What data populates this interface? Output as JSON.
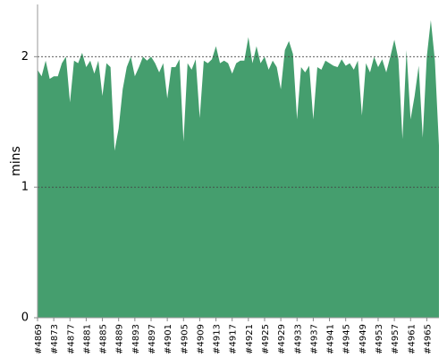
{
  "chart_data": {
    "type": "area",
    "y_label": "mins",
    "color": "#459e6e",
    "grid": true,
    "ylim": [
      0,
      2.4
    ],
    "yticks": [
      0,
      1,
      2
    ],
    "categories": [
      "#4869",
      null,
      null,
      null,
      "#4873",
      null,
      null,
      null,
      "#4877",
      null,
      null,
      null,
      "#4881",
      null,
      null,
      null,
      "#4885",
      null,
      null,
      null,
      "#4889",
      null,
      null,
      null,
      "#4893",
      null,
      null,
      null,
      "#4897",
      null,
      null,
      null,
      "#4901",
      null,
      null,
      null,
      "#4905",
      null,
      null,
      null,
      "#4909",
      null,
      null,
      null,
      "#4913",
      null,
      null,
      null,
      "#4917",
      null,
      null,
      null,
      "#4921",
      null,
      null,
      null,
      "#4925",
      null,
      null,
      null,
      "#4929",
      null,
      null,
      null,
      "#4933",
      null,
      null,
      null,
      "#4937",
      null,
      null,
      null,
      "#4941",
      null,
      null,
      null,
      "#4945",
      null,
      null,
      null,
      "#4949",
      null,
      null,
      null,
      "#4953",
      null,
      null,
      null,
      "#4957",
      null,
      null,
      null,
      "#4961",
      null,
      null,
      null,
      "#4965",
      null,
      null,
      null
    ],
    "values": [
      1.9,
      1.85,
      1.97,
      1.83,
      1.85,
      1.85,
      1.95,
      2.0,
      1.65,
      1.97,
      1.95,
      2.03,
      1.92,
      1.97,
      1.87,
      1.97,
      1.7,
      1.95,
      1.92,
      1.28,
      1.45,
      1.75,
      1.92,
      2.0,
      1.85,
      1.92,
      2.0,
      1.97,
      2.0,
      1.95,
      1.88,
      1.95,
      1.68,
      1.92,
      1.92,
      1.98,
      1.35,
      1.95,
      1.9,
      1.98,
      1.53,
      1.97,
      1.95,
      1.98,
      2.08,
      1.95,
      1.97,
      1.95,
      1.87,
      1.95,
      1.97,
      1.97,
      2.15,
      1.95,
      2.08,
      1.95,
      2.0,
      1.9,
      1.97,
      1.92,
      1.75,
      2.05,
      2.12,
      2.02,
      1.52,
      1.92,
      1.88,
      1.93,
      1.52,
      1.92,
      1.9,
      1.97,
      1.95,
      1.93,
      1.92,
      1.98,
      1.93,
      1.95,
      1.9,
      1.97,
      1.55,
      1.95,
      1.88,
      2.0,
      1.92,
      1.98,
      1.88,
      2.0,
      2.13,
      1.98,
      1.37,
      2.05,
      1.52,
      1.7,
      1.93,
      1.38,
      2.0,
      2.28,
      1.97,
      1.32
    ]
  }
}
